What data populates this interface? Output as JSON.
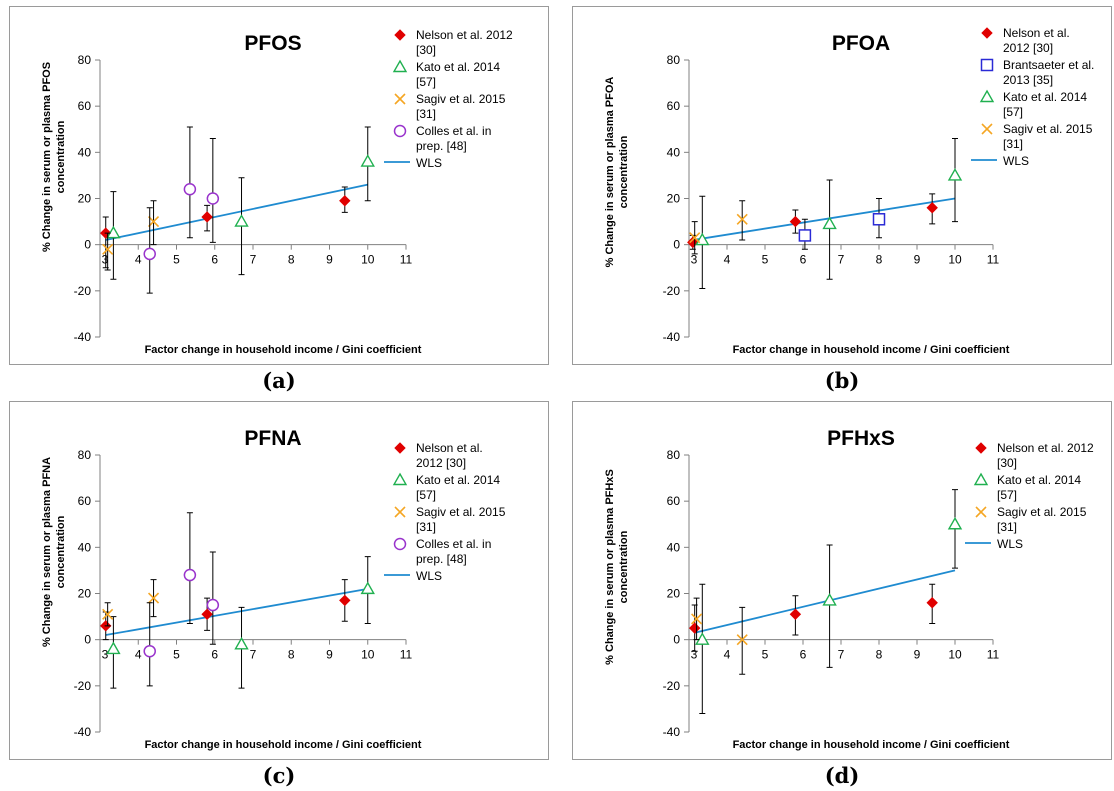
{
  "colors": {
    "nelson": "#e00000",
    "brantsaeter": "#2a2ad6",
    "kato": "#20b050",
    "sagiv": "#f5a623",
    "colles": "#9933cc",
    "wls": "#1f8bd0"
  },
  "chart_data": [
    {
      "id": "a",
      "caption": "(a)",
      "type": "scatter",
      "title": "PFOS",
      "xlabel": "Factor change in household income / Gini coefficient",
      "ylabel": "% Change in serum or plasma  PFOS concentration",
      "xlim": [
        3,
        11
      ],
      "ylim": [
        -40,
        80
      ],
      "xticks": [
        "3",
        "4",
        "5",
        "6",
        "7",
        "8",
        "9",
        "10",
        "11"
      ],
      "yticks": [
        "-40",
        "-20",
        "0",
        "20",
        "40",
        "60",
        "80"
      ],
      "legend": [
        {
          "key": "nelson",
          "lines": [
            "Nelson et al. 2012",
            "[30]"
          ]
        },
        {
          "key": "kato",
          "lines": [
            "Kato et al. 2014",
            "[57]"
          ]
        },
        {
          "key": "sagiv",
          "lines": [
            "Sagiv et al. 2015",
            "[31]"
          ]
        },
        {
          "key": "colles",
          "lines": [
            "Colles et al. in",
            "prep. [48]"
          ]
        },
        {
          "key": "wls",
          "lines": [
            "WLS"
          ]
        }
      ],
      "series": [
        {
          "key": "nelson",
          "points": [
            {
              "x": 3.15,
              "y": 5,
              "lo": -10,
              "hi": 12
            },
            {
              "x": 5.8,
              "y": 12,
              "lo": 6,
              "hi": 17
            },
            {
              "x": 9.4,
              "y": 19,
              "lo": 14,
              "hi": 25
            }
          ]
        },
        {
          "key": "kato",
          "points": [
            {
              "x": 3.35,
              "y": 5,
              "lo": -15,
              "hi": 23
            },
            {
              "x": 6.7,
              "y": 10,
              "lo": -13,
              "hi": 29
            },
            {
              "x": 10,
              "y": 36,
              "lo": 19,
              "hi": 51
            }
          ]
        },
        {
          "key": "sagiv",
          "points": [
            {
              "x": 3.2,
              "y": -2,
              "lo": -11,
              "hi": 5
            },
            {
              "x": 4.4,
              "y": 10,
              "lo": 0,
              "hi": 19
            }
          ]
        },
        {
          "key": "colles",
          "points": [
            {
              "x": 4.3,
              "y": -4,
              "lo": -21,
              "hi": 16
            },
            {
              "x": 5.35,
              "y": 24,
              "lo": 3,
              "hi": 51
            },
            {
              "x": 5.95,
              "y": 20,
              "lo": 1,
              "hi": 46
            }
          ]
        }
      ],
      "wls": [
        [
          3.15,
          2
        ],
        [
          10,
          26
        ]
      ]
    },
    {
      "id": "b",
      "caption": "(b)",
      "type": "scatter",
      "title": "PFOA",
      "xlabel": "Factor change in household income / Gini coefficient",
      "ylabel": "% Change in serum or plasma  PFOA concentration",
      "xlim": [
        3,
        11
      ],
      "ylim": [
        -40,
        80
      ],
      "xticks": [
        "3",
        "4",
        "5",
        "6",
        "7",
        "8",
        "9",
        "10",
        "11"
      ],
      "yticks": [
        "-40",
        "-20",
        "0",
        "20",
        "40",
        "60",
        "80"
      ],
      "legend": [
        {
          "key": "nelson",
          "lines": [
            "Nelson et al.",
            "2012 [30]"
          ]
        },
        {
          "key": "brantsaeter",
          "lines": [
            "Brantsaeter et al.",
            "2013 [35]"
          ]
        },
        {
          "key": "kato",
          "lines": [
            "Kato et al. 2014",
            "[57]"
          ]
        },
        {
          "key": "sagiv",
          "lines": [
            "Sagiv et al. 2015",
            "[31]"
          ]
        },
        {
          "key": "wls",
          "lines": [
            "WLS"
          ]
        }
      ],
      "series": [
        {
          "key": "nelson",
          "points": [
            {
              "x": 3.1,
              "y": 1,
              "lo": -2,
              "hi": 4
            },
            {
              "x": 5.8,
              "y": 10,
              "lo": 5,
              "hi": 15
            },
            {
              "x": 9.4,
              "y": 16,
              "lo": 9,
              "hi": 22
            }
          ]
        },
        {
          "key": "brantsaeter",
          "points": [
            {
              "x": 6.05,
              "y": 4,
              "lo": -2,
              "hi": 11
            },
            {
              "x": 8,
              "y": 11,
              "lo": 3,
              "hi": 20
            }
          ]
        },
        {
          "key": "kato",
          "points": [
            {
              "x": 3.35,
              "y": 2,
              "lo": -19,
              "hi": 21
            },
            {
              "x": 6.7,
              "y": 9,
              "lo": -15,
              "hi": 28
            },
            {
              "x": 10,
              "y": 30,
              "lo": 10,
              "hi": 46
            }
          ]
        },
        {
          "key": "sagiv",
          "points": [
            {
              "x": 3.15,
              "y": 3,
              "lo": -4,
              "hi": 10
            },
            {
              "x": 4.4,
              "y": 11,
              "lo": 2,
              "hi": 19
            }
          ]
        }
      ],
      "wls": [
        [
          3.1,
          2
        ],
        [
          10,
          20
        ]
      ]
    },
    {
      "id": "c",
      "caption": "(c)",
      "type": "scatter",
      "title": "PFNA",
      "xlabel": "Factor change in household income / Gini coefficient",
      "ylabel": "% Change in serum or plasma  PFNA concentration",
      "xlim": [
        3,
        11
      ],
      "ylim": [
        -40,
        80
      ],
      "xticks": [
        "3",
        "4",
        "5",
        "6",
        "7",
        "8",
        "9",
        "10",
        "11"
      ],
      "yticks": [
        "-40",
        "-20",
        "0",
        "20",
        "40",
        "60",
        "80"
      ],
      "legend": [
        {
          "key": "nelson",
          "lines": [
            "Nelson et al.",
            "2012 [30]"
          ]
        },
        {
          "key": "kato",
          "lines": [
            "Kato et al. 2014",
            "[57]"
          ]
        },
        {
          "key": "sagiv",
          "lines": [
            "Sagiv et al. 2015",
            "[31]"
          ]
        },
        {
          "key": "colles",
          "lines": [
            "Colles et al. in",
            "prep. [48]"
          ]
        },
        {
          "key": "wls",
          "lines": [
            "WLS"
          ]
        }
      ],
      "series": [
        {
          "key": "nelson",
          "points": [
            {
              "x": 3.15,
              "y": 6,
              "lo": 0,
              "hi": 12
            },
            {
              "x": 5.8,
              "y": 11,
              "lo": 4,
              "hi": 18
            },
            {
              "x": 9.4,
              "y": 17,
              "lo": 8,
              "hi": 26
            }
          ]
        },
        {
          "key": "kato",
          "points": [
            {
              "x": 3.35,
              "y": -4,
              "lo": -21,
              "hi": 10
            },
            {
              "x": 6.7,
              "y": -2,
              "lo": -21,
              "hi": 14
            },
            {
              "x": 10,
              "y": 22,
              "lo": 7,
              "hi": 36
            }
          ]
        },
        {
          "key": "sagiv",
          "points": [
            {
              "x": 3.2,
              "y": 11,
              "lo": 6,
              "hi": 16
            },
            {
              "x": 4.4,
              "y": 18,
              "lo": 10,
              "hi": 26
            }
          ]
        },
        {
          "key": "colles",
          "points": [
            {
              "x": 4.3,
              "y": -5,
              "lo": -20,
              "hi": 16
            },
            {
              "x": 5.35,
              "y": 28,
              "lo": 7,
              "hi": 55
            },
            {
              "x": 5.95,
              "y": 15,
              "lo": -2,
              "hi": 38
            }
          ]
        }
      ],
      "wls": [
        [
          3.15,
          2
        ],
        [
          10,
          22
        ]
      ]
    },
    {
      "id": "d",
      "caption": "(d)",
      "type": "scatter",
      "title": "PFHxS",
      "xlabel": "Factor change in household income / Gini coefficient",
      "ylabel": "% Change in serum or plasma  PFHxS concentration",
      "xlim": [
        3,
        11
      ],
      "ylim": [
        -40,
        80
      ],
      "xticks": [
        "3",
        "4",
        "5",
        "6",
        "7",
        "8",
        "9",
        "10",
        "11"
      ],
      "yticks": [
        "-40",
        "-20",
        "0",
        "20",
        "40",
        "60",
        "80"
      ],
      "legend": [
        {
          "key": "nelson",
          "lines": [
            "Nelson et al. 2012",
            "[30]"
          ]
        },
        {
          "key": "kato",
          "lines": [
            "Kato et al. 2014",
            "[57]"
          ]
        },
        {
          "key": "sagiv",
          "lines": [
            "Sagiv et al. 2015",
            "[31]"
          ]
        },
        {
          "key": "wls",
          "lines": [
            "WLS"
          ]
        }
      ],
      "series": [
        {
          "key": "nelson",
          "points": [
            {
              "x": 3.15,
              "y": 5,
              "lo": -5,
              "hi": 15
            },
            {
              "x": 5.8,
              "y": 11,
              "lo": 2,
              "hi": 19
            },
            {
              "x": 9.4,
              "y": 16,
              "lo": 7,
              "hi": 24
            }
          ]
        },
        {
          "key": "kato",
          "points": [
            {
              "x": 3.35,
              "y": 0,
              "lo": -32,
              "hi": 24
            },
            {
              "x": 6.7,
              "y": 17,
              "lo": -12,
              "hi": 41
            },
            {
              "x": 10,
              "y": 50,
              "lo": 31,
              "hi": 65
            }
          ]
        },
        {
          "key": "sagiv",
          "points": [
            {
              "x": 3.2,
              "y": 9,
              "lo": 0,
              "hi": 18
            },
            {
              "x": 4.4,
              "y": 0,
              "lo": -15,
              "hi": 14
            }
          ]
        }
      ],
      "wls": [
        [
          3.15,
          3
        ],
        [
          10,
          30
        ]
      ]
    }
  ]
}
